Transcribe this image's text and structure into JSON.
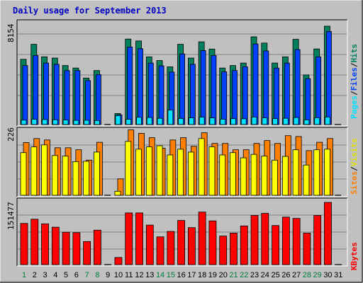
{
  "title": "Daily usage for September 2013",
  "colors": {
    "background": "#c0c0c0",
    "hits": "#00805c",
    "files": "#0040ff",
    "pages": "#00e0ff",
    "visits": "#ffff00",
    "sites": "#ff8000",
    "kbytes": "#ff0000",
    "weekend_day": "#007f3f"
  },
  "chart_data": [
    {
      "type": "bar",
      "name": "hits-files-pages",
      "categories": [
        "1",
        "2",
        "3",
        "4",
        "5",
        "6",
        "7",
        "8",
        "9",
        "10",
        "11",
        "12",
        "13",
        "14",
        "15",
        "16",
        "17",
        "18",
        "19",
        "20",
        "21",
        "22",
        "23",
        "24",
        "25",
        "26",
        "27",
        "28",
        "29",
        "30",
        "31"
      ],
      "max_label": "8154",
      "ylim": [
        0,
        8154
      ],
      "legend": [
        "Pages",
        "/",
        "Files",
        "/",
        "Hits"
      ],
      "series": [
        {
          "name": "Hits",
          "values": [
            5220,
            6420,
            5420,
            5320,
            4720,
            4520,
            3720,
            4320,
            0,
            880,
            6840,
            6690,
            5420,
            5120,
            4620,
            6420,
            5320,
            6620,
            6040,
            4520,
            4720,
            4920,
            7020,
            6520,
            4920,
            5420,
            6820,
            3970,
            6050,
            7870,
            0
          ]
        },
        {
          "name": "Files",
          "values": [
            4720,
            5520,
            4920,
            4820,
            4320,
            4320,
            3520,
            4000,
            0,
            780,
            6200,
            6070,
            4920,
            4700,
            4200,
            5650,
            4820,
            5920,
            5520,
            4220,
            4320,
            4620,
            6450,
            5890,
            4520,
            4920,
            6000,
            3670,
            5420,
            7450,
            0
          ]
        },
        {
          "name": "Pages",
          "values": [
            350,
            420,
            400,
            380,
            360,
            330,
            340,
            320,
            0,
            720,
            420,
            580,
            560,
            500,
            1160,
            490,
            540,
            590,
            530,
            430,
            470,
            460,
            600,
            540,
            470,
            500,
            560,
            370,
            540,
            600,
            0
          ]
        }
      ]
    },
    {
      "type": "bar",
      "name": "visits-sites",
      "categories": [
        "1",
        "2",
        "3",
        "4",
        "5",
        "6",
        "7",
        "8",
        "9",
        "10",
        "11",
        "12",
        "13",
        "14",
        "15",
        "16",
        "17",
        "18",
        "19",
        "20",
        "21",
        "22",
        "23",
        "24",
        "25",
        "26",
        "27",
        "28",
        "29",
        "30",
        "31"
      ],
      "max_label": "226",
      "ylim": [
        0,
        226
      ],
      "legend": [
        "Sites",
        "/",
        "Visits"
      ],
      "series": [
        {
          "name": "Visits",
          "values": [
            148,
            168,
            175,
            138,
            136,
            117,
            118,
            150,
            0,
            14,
            187,
            160,
            168,
            172,
            140,
            160,
            150,
            197,
            168,
            140,
            148,
            130,
            142,
            136,
            122,
            135,
            158,
            105,
            158,
            160,
            0
          ]
        },
        {
          "name": "Sites",
          "values": [
            183,
            197,
            192,
            165,
            165,
            158,
            122,
            184,
            0,
            57,
            227,
            215,
            200,
            163,
            192,
            200,
            170,
            217,
            180,
            180,
            158,
            158,
            180,
            190,
            180,
            207,
            204,
            155,
            184,
            197,
            0
          ]
        }
      ]
    },
    {
      "type": "bar",
      "name": "kbytes",
      "categories": [
        "1",
        "2",
        "3",
        "4",
        "5",
        "6",
        "7",
        "8",
        "9",
        "10",
        "11",
        "12",
        "13",
        "14",
        "15",
        "16",
        "17",
        "18",
        "19",
        "20",
        "21",
        "22",
        "23",
        "24",
        "25",
        "26",
        "27",
        "28",
        "29",
        "30",
        "31"
      ],
      "max_label": "151477",
      "ylim": [
        0,
        151477
      ],
      "legend": [
        "KBytes"
      ],
      "series": [
        {
          "name": "KBytes",
          "values": [
            98000,
            108000,
            97000,
            89000,
            77000,
            76000,
            55000,
            82000,
            0,
            17000,
            123000,
            123000,
            94000,
            66000,
            79000,
            105000,
            88000,
            125000,
            104000,
            68000,
            75000,
            92000,
            117000,
            122000,
            93000,
            113000,
            110000,
            75000,
            117000,
            148000,
            0
          ]
        }
      ]
    }
  ],
  "days": [
    {
      "label": "1",
      "weekend": true
    },
    {
      "label": "2",
      "weekend": false
    },
    {
      "label": "3",
      "weekend": false
    },
    {
      "label": "4",
      "weekend": false
    },
    {
      "label": "5",
      "weekend": false
    },
    {
      "label": "6",
      "weekend": false
    },
    {
      "label": "7",
      "weekend": true
    },
    {
      "label": "8",
      "weekend": true
    },
    {
      "label": "9",
      "weekend": false
    },
    {
      "label": "10",
      "weekend": false
    },
    {
      "label": "11",
      "weekend": false
    },
    {
      "label": "12",
      "weekend": false
    },
    {
      "label": "13",
      "weekend": false
    },
    {
      "label": "14",
      "weekend": true
    },
    {
      "label": "15",
      "weekend": true
    },
    {
      "label": "16",
      "weekend": false
    },
    {
      "label": "17",
      "weekend": false
    },
    {
      "label": "18",
      "weekend": false
    },
    {
      "label": "19",
      "weekend": false
    },
    {
      "label": "20",
      "weekend": false
    },
    {
      "label": "21",
      "weekend": true
    },
    {
      "label": "22",
      "weekend": true
    },
    {
      "label": "23",
      "weekend": false
    },
    {
      "label": "24",
      "weekend": false
    },
    {
      "label": "25",
      "weekend": false
    },
    {
      "label": "26",
      "weekend": false
    },
    {
      "label": "27",
      "weekend": false
    },
    {
      "label": "28",
      "weekend": true
    },
    {
      "label": "29",
      "weekend": true
    },
    {
      "label": "30",
      "weekend": false
    },
    {
      "label": "31",
      "weekend": false
    }
  ]
}
